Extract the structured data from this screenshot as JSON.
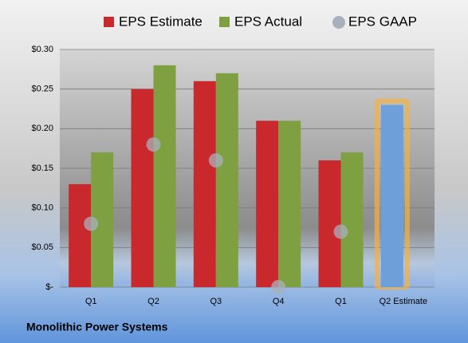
{
  "chart_data": {
    "type": "bar",
    "title": "Monolithic Power Systems",
    "categories": [
      "Q1",
      "Q2",
      "Q3",
      "Q4",
      "Q1",
      "Q2 Estimate"
    ],
    "series": [
      {
        "name": "EPS Estimate",
        "color": "#c9282d",
        "values": [
          0.13,
          0.25,
          0.26,
          0.21,
          0.16,
          0.23
        ]
      },
      {
        "name": "EPS Actual",
        "color": "#7ea040",
        "values": [
          0.17,
          0.28,
          0.27,
          0.21,
          0.17,
          null
        ]
      },
      {
        "name": "EPS GAAP",
        "color": "#a8b0bc",
        "marker": "circle",
        "values": [
          0.08,
          0.18,
          0.16,
          0,
          0.07,
          null
        ]
      }
    ],
    "highlight": {
      "index": 5,
      "color": "#6f9fd8",
      "glow": "#f5b041"
    },
    "ylim": [
      0,
      0.3
    ],
    "yticks": [
      {
        "value": 0,
        "label": "$-"
      },
      {
        "value": 0.05,
        "label": "$0.05"
      },
      {
        "value": 0.1,
        "label": "$0.10"
      },
      {
        "value": 0.15,
        "label": "$0.15"
      },
      {
        "value": 0.2,
        "label": "$0.20"
      },
      {
        "value": 0.25,
        "label": "$0.25"
      },
      {
        "value": 0.3,
        "label": "$0.30"
      }
    ],
    "grid": true
  }
}
